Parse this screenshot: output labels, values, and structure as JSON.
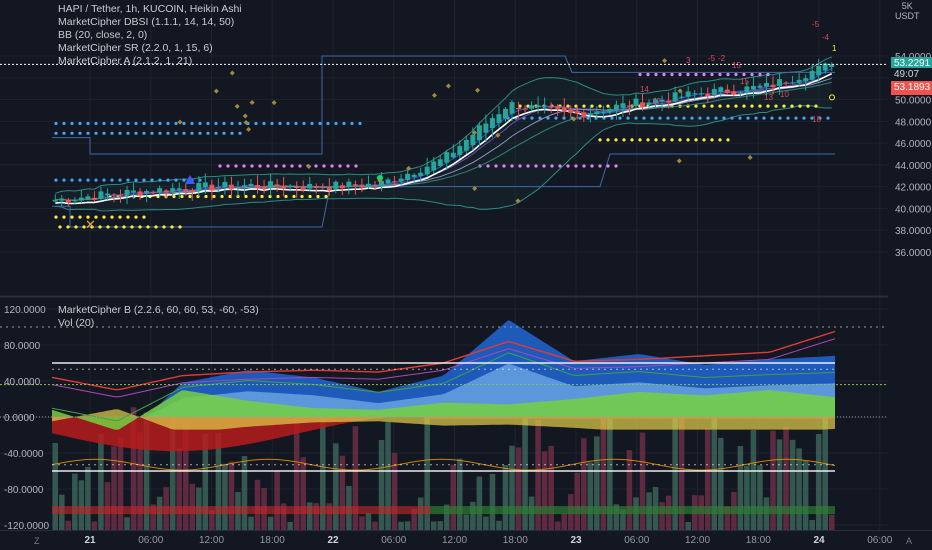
{
  "legend_top": [
    "HAPI / Tether, 1h, KUCOIN, Heikin Ashi",
    "MarketCipher DBSI (1.1.1, 14, 14, 50)",
    "BB (20, close, 2, 0)",
    "MarketCipher SR (2.2.0, 1, 15, 6)",
    "MarketCipher A (2.1.2, 1, 21)"
  ],
  "legend_bottom": [
    "MarketCipher B (2.2.6, 60, 60, 53, -60, -53)",
    "Vol (20)"
  ],
  "axis": {
    "unit_top": "5K",
    "unit_bottom": "USDT",
    "price_ticks": [
      "54.0000",
      "52.0000",
      "50.0000",
      "48.0000",
      "46.0000",
      "44.0000",
      "42.0000",
      "40.0000",
      "38.0000",
      "36.0000"
    ],
    "osc_ticks": [
      "120.0000",
      "80.0000",
      "40.0000",
      "0.0000",
      "-40.0000",
      "-80.0000",
      "-120.0000"
    ],
    "time_ticks": [
      "21",
      "06:00",
      "12:00",
      "18:00",
      "22",
      "06:00",
      "12:00",
      "18:00",
      "23",
      "06:00",
      "12:00",
      "18:00",
      "24",
      "06:00"
    ],
    "time_bold": [
      "21",
      "22",
      "23",
      "24"
    ],
    "corner_left": "Z",
    "corner_right": "A"
  },
  "price_tags": {
    "last": "53.2291",
    "countdown": "49:07",
    "bid": "53.1893"
  },
  "markers": [
    "-5",
    "-4",
    "-5",
    "-2",
    "15",
    "14",
    "17",
    "15",
    "13",
    "10",
    "1",
    "3",
    "18"
  ],
  "colors": {
    "background": "#131722",
    "up": "#26a69a",
    "down": "#ef5350",
    "grid": "#1e222d",
    "bb": "#6cb7d4",
    "sr": "#3d6aa8"
  },
  "chart_data": [
    {
      "type": "candlestick",
      "title": "HAPI / Tether, 1h, KUCOIN, Heikin Ashi",
      "ylim": [
        35,
        56
      ],
      "x": [
        "21 00:00",
        "21 06:00",
        "21 12:00",
        "21 18:00",
        "22 00:00",
        "22 06:00",
        "22 12:00",
        "22 18:00",
        "23 00:00",
        "23 06:00",
        "23 12:00",
        "23 18:00",
        "24 00:00"
      ],
      "close": [
        40.8,
        41.4,
        41.9,
        42.1,
        42.0,
        42.2,
        44.5,
        49.6,
        48.6,
        49.7,
        50.6,
        51.2,
        53.2
      ],
      "last_price": 53.2291
    },
    {
      "type": "area",
      "title": "MarketCipher B (2.2.6, 60, 60, 53, -60, -53)",
      "ylim": [
        -125,
        125
      ],
      "levels": [
        60,
        53,
        -60,
        -53
      ],
      "wave1": [
        -4,
        -30,
        38,
        52,
        44,
        28,
        46,
        108,
        62,
        70,
        58,
        64,
        68
      ],
      "money_flow": [
        8,
        -15,
        30,
        18,
        10,
        8,
        16,
        14,
        20,
        28,
        24,
        30,
        22
      ],
      "rsi": [
        44,
        30,
        46,
        50,
        52,
        50,
        60,
        84,
        62,
        64,
        68,
        72,
        95
      ]
    }
  ]
}
